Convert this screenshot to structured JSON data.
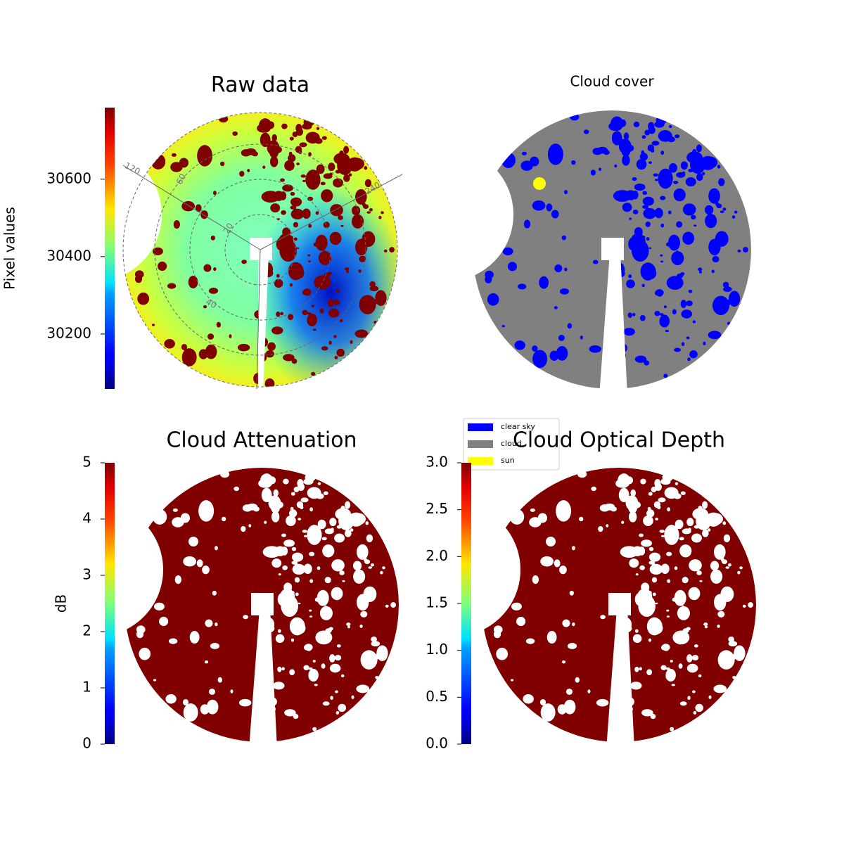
{
  "chart_data": [
    {
      "type": "image",
      "title": "Raw data",
      "cmap": "jet",
      "colorbar": {
        "label": "Pixel values",
        "lim": [
          30058,
          30785
        ],
        "ticks": [
          30200,
          30400,
          30600
        ]
      },
      "polar_labels": [
        "120",
        "60",
        "20",
        "40",
        "240"
      ]
    },
    {
      "type": "categorical-image",
      "title": "Cloud cover",
      "legend": [
        {
          "name": "clear sky",
          "color": "#0000ff"
        },
        {
          "name": "cloud",
          "color": "#808080"
        },
        {
          "name": "sun",
          "color": "#ffff00"
        }
      ]
    },
    {
      "type": "image",
      "title": "Cloud Attenuation",
      "cmap": "jet",
      "colorbar": {
        "label": "dB",
        "lim": [
          0,
          5
        ],
        "ticks": [
          0,
          1,
          2,
          3,
          4,
          5
        ]
      }
    },
    {
      "type": "image",
      "title": "Cloud Optical Depth",
      "cmap": "jet",
      "colorbar": {
        "lim": [
          0,
          3
        ],
        "ticks": [
          {
            "value": 0,
            "label": "0.0"
          },
          0.5,
          {
            "value": 1,
            "label": "1.0"
          },
          1.5,
          {
            "value": 2,
            "label": "2.0"
          },
          2.5,
          {
            "value": 3,
            "label": "3.0"
          }
        ]
      }
    }
  ]
}
